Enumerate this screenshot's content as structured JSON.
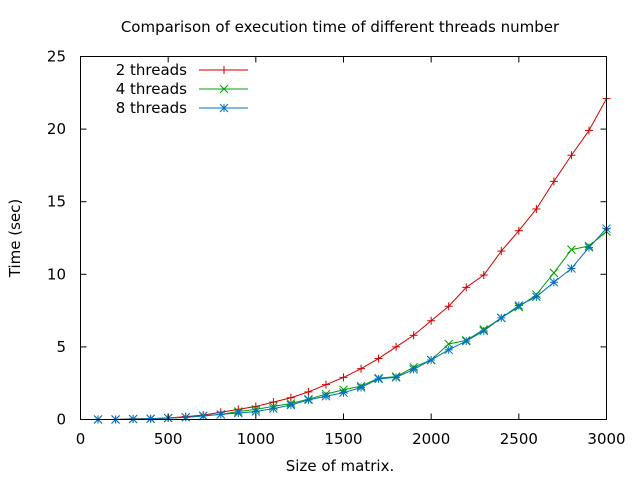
{
  "chart_data": {
    "type": "line",
    "title": "Comparison of execution time of different threads number",
    "xlabel": "Size of matrix.",
    "ylabel": "Time (sec)",
    "xlim": [
      0,
      3000
    ],
    "ylim": [
      0,
      25
    ],
    "xticks": [
      0,
      500,
      1000,
      1500,
      2000,
      2500,
      3000
    ],
    "yticks": [
      0,
      5,
      10,
      15,
      20,
      25
    ],
    "grid": false,
    "legend": "top-left",
    "x": [
      100,
      200,
      300,
      400,
      500,
      600,
      700,
      800,
      900,
      1000,
      1100,
      1200,
      1300,
      1400,
      1500,
      1600,
      1700,
      1800,
      1900,
      2000,
      2100,
      2200,
      2300,
      2400,
      2500,
      2600,
      2700,
      2800,
      2900,
      3000
    ],
    "series": [
      {
        "name": "2 threads",
        "color": "#cc0000",
        "marker": "plus",
        "values": [
          0.0,
          0.0,
          0.05,
          0.05,
          0.1,
          0.2,
          0.3,
          0.5,
          0.7,
          0.9,
          1.2,
          1.5,
          1.9,
          2.4,
          2.9,
          3.5,
          4.2,
          5.0,
          5.8,
          6.8,
          7.8,
          9.1,
          9.95,
          11.6,
          13.0,
          14.5,
          16.4,
          18.2,
          19.9,
          22.1
        ]
      },
      {
        "name": "4 threads",
        "color": "#00a000",
        "marker": "cross",
        "values": [
          0.0,
          0.0,
          0.03,
          0.05,
          0.1,
          0.15,
          0.25,
          0.35,
          0.55,
          0.7,
          0.9,
          1.1,
          1.4,
          1.75,
          2.05,
          2.3,
          2.85,
          2.95,
          3.6,
          4.1,
          5.2,
          5.45,
          6.2,
          7.0,
          7.75,
          8.6,
          10.1,
          11.7,
          11.95,
          12.95
        ]
      },
      {
        "name": "8 threads",
        "color": "#0070c0",
        "marker": "star",
        "values": [
          0.0,
          0.0,
          0.03,
          0.05,
          0.1,
          0.15,
          0.25,
          0.35,
          0.45,
          0.55,
          0.75,
          1.0,
          1.35,
          1.6,
          1.85,
          2.2,
          2.8,
          2.9,
          3.45,
          4.1,
          4.8,
          5.4,
          6.1,
          7.0,
          7.85,
          8.45,
          9.45,
          10.4,
          11.85,
          13.15
        ]
      }
    ]
  }
}
